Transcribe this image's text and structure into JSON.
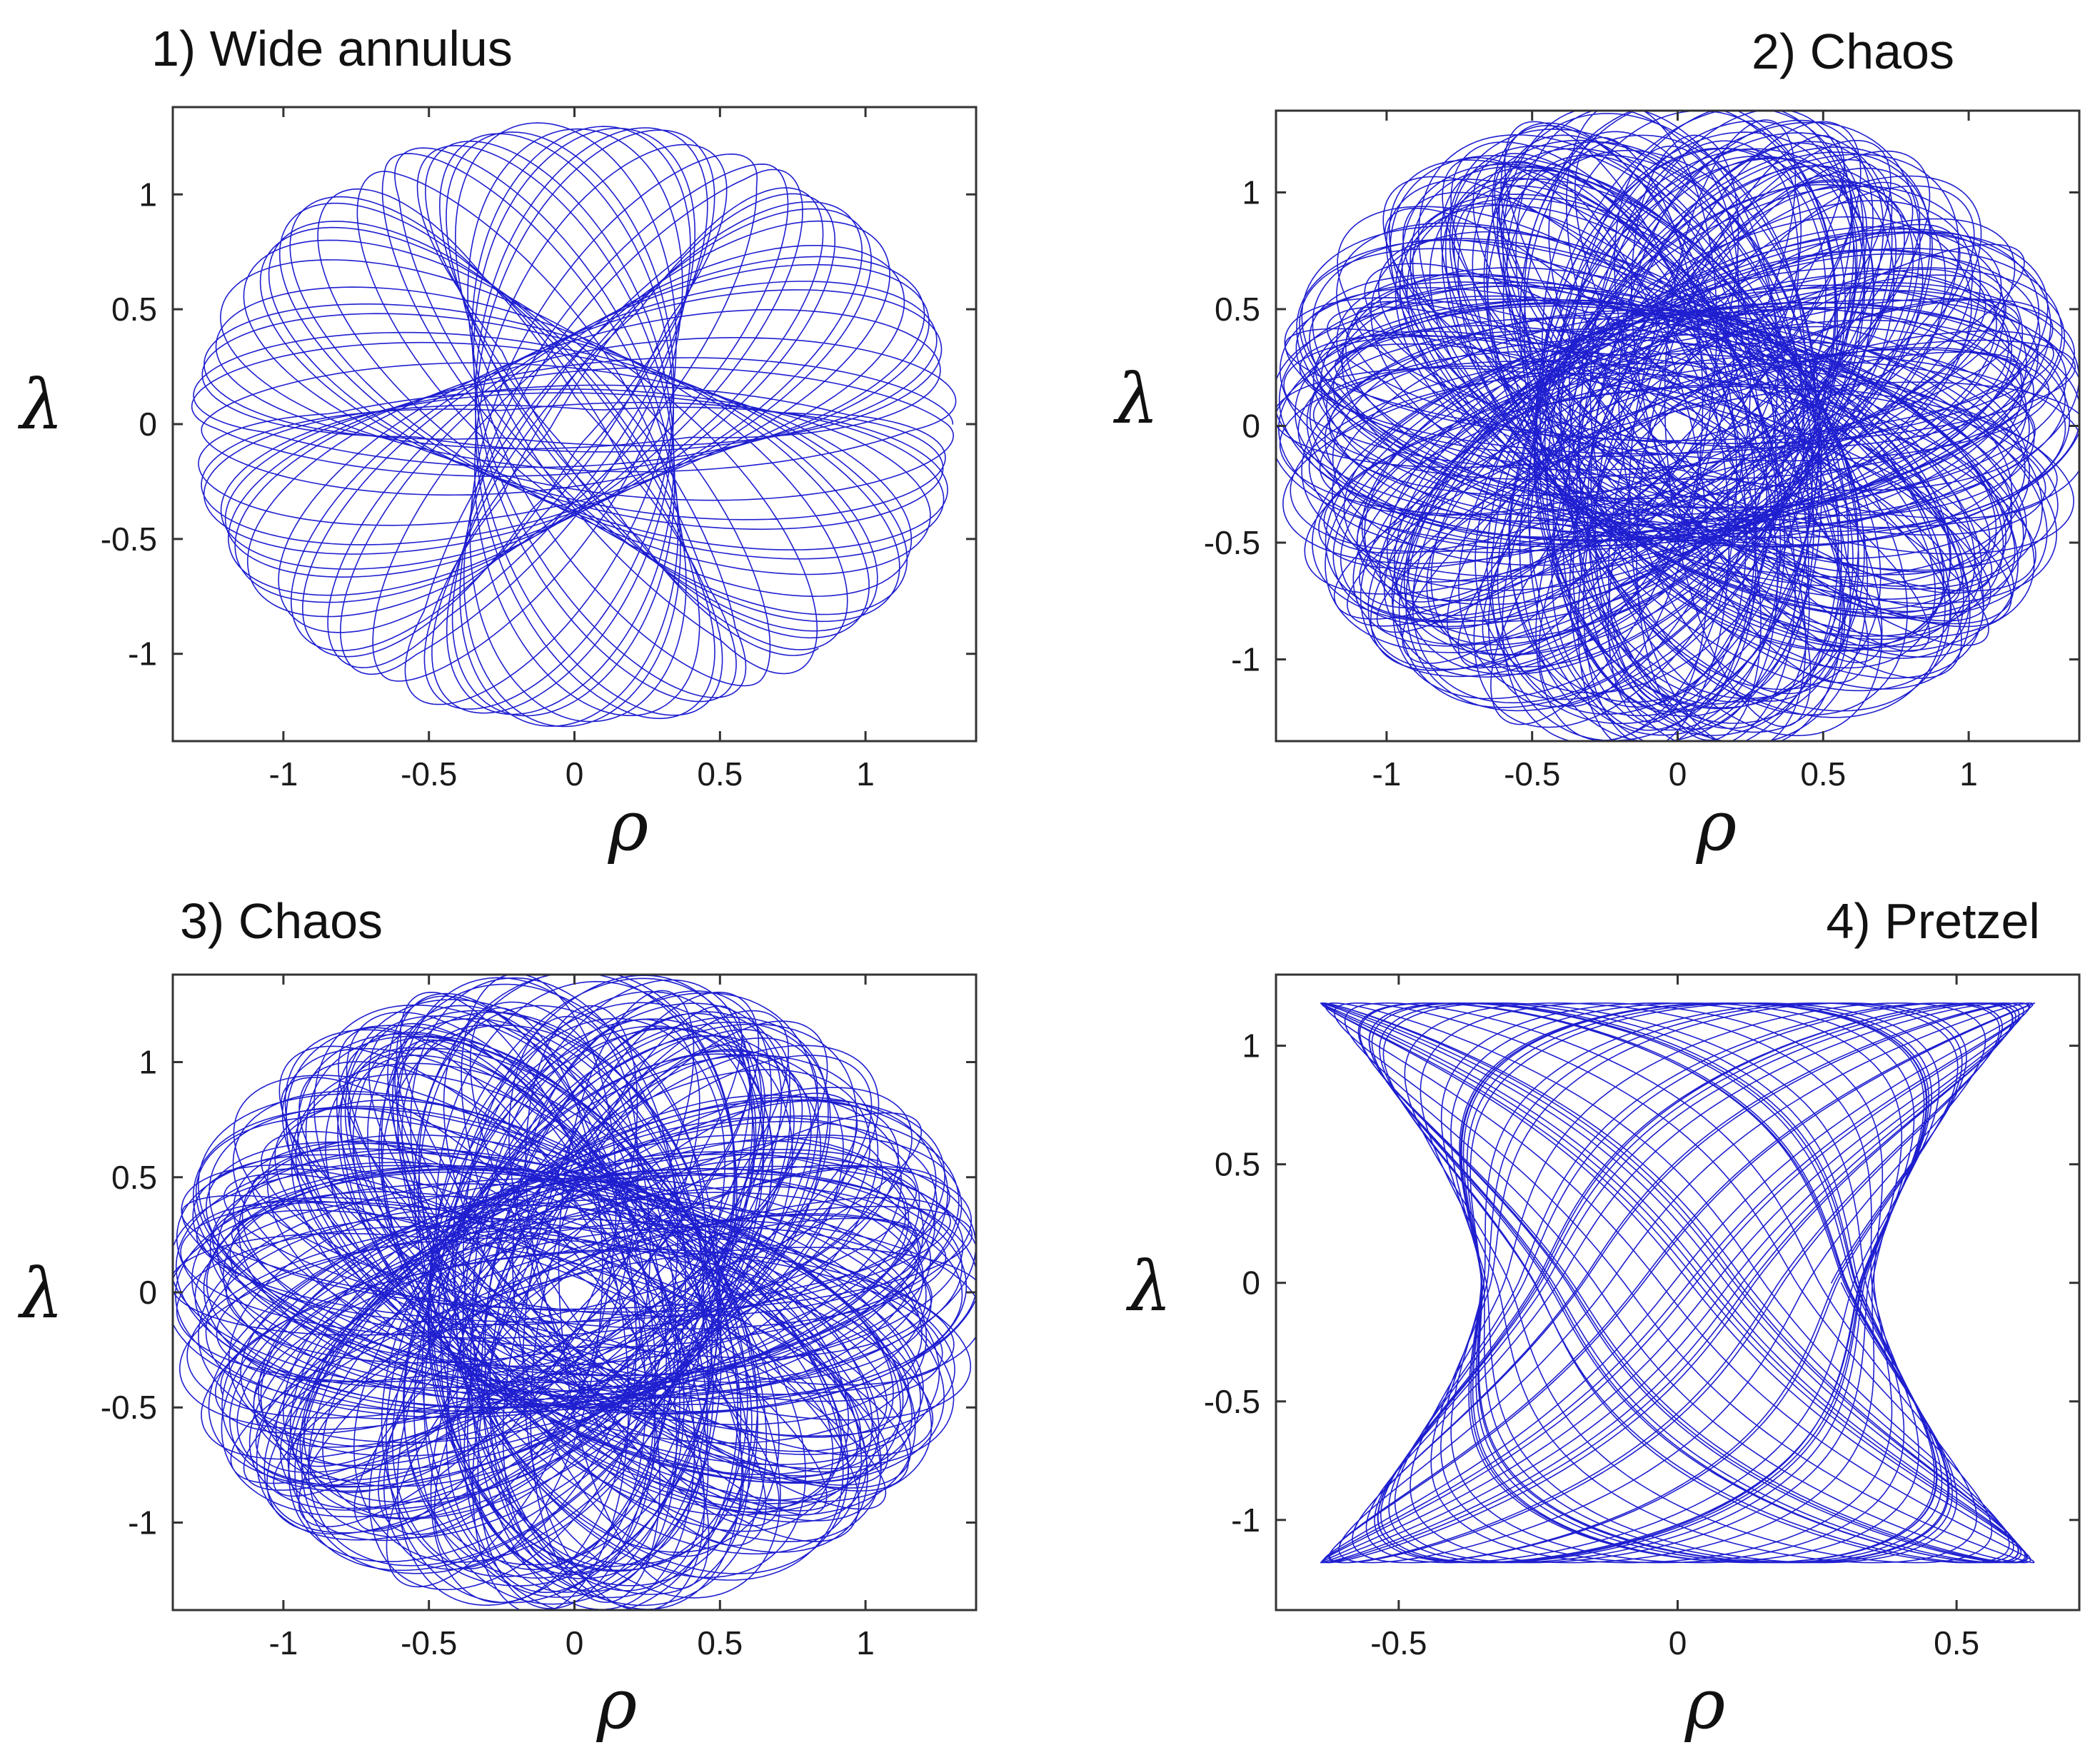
{
  "chart_data": [
    {
      "type": "line",
      "title": "1) Wide annulus",
      "xlabel": "ρ",
      "ylabel": "λ",
      "xlim": [
        -1.38,
        1.38
      ],
      "ylim": [
        -1.38,
        1.38
      ],
      "xticks": [
        -1,
        -0.5,
        0,
        0.5,
        1
      ],
      "xtick_labels": [
        "-1",
        "-0.5",
        "0",
        "0.5",
        "1"
      ],
      "yticks": [
        -1,
        -0.5,
        0,
        0.5,
        1
      ],
      "ytick_labels": [
        "-1",
        "-0.5",
        "0",
        "0.5",
        "1"
      ],
      "grid": false,
      "line_color": "#1f1fd0",
      "trajectory": {
        "pattern": "six-lobed rosette of nested ellipses",
        "A": 1.3,
        "B": 0.06,
        "orientations": 6,
        "turns": 7,
        "r_min": 0.06,
        "r_max": 1.32
      }
    },
    {
      "type": "line",
      "title": "2) Chaos",
      "xlabel": "ρ",
      "ylabel": "λ",
      "xlim": [
        -1.38,
        1.38
      ],
      "ylim": [
        -1.35,
        1.35
      ],
      "xticks": [
        -1,
        -0.5,
        0,
        0.5,
        1
      ],
      "xtick_labels": [
        "-1",
        "-0.5",
        "0",
        "0.5",
        "1"
      ],
      "yticks": [
        -1,
        -0.5,
        0,
        0.5,
        1
      ],
      "ytick_labels": [
        "-1",
        "-0.5",
        "0",
        "0.5",
        "1"
      ],
      "grid": false,
      "line_color": "#1f1fd0",
      "trajectory": {
        "pattern": "chaotic orbit filling a disk",
        "A": 1.3,
        "B": 0.04,
        "orientations": 6,
        "turns": 26,
        "r_min": 0.0,
        "r_max": 1.3
      }
    },
    {
      "type": "line",
      "title": "3) Chaos",
      "xlabel": "ρ",
      "ylabel": "λ",
      "xlim": [
        -1.38,
        1.38
      ],
      "ylim": [
        -1.38,
        1.38
      ],
      "xticks": [
        -1,
        -0.5,
        0,
        0.5,
        1
      ],
      "xtick_labels": [
        "-1",
        "-0.5",
        "0",
        "0.5",
        "1"
      ],
      "yticks": [
        -1,
        -0.5,
        0,
        0.5,
        1
      ],
      "ytick_labels": [
        "-1",
        "-0.5",
        "0",
        "0.5",
        "1"
      ],
      "grid": false,
      "line_color": "#1f1fd0",
      "trajectory": {
        "pattern": "chaotic orbit with drifting lobes",
        "A": 1.3,
        "B": 0.05,
        "orientations": 6,
        "turns": 24,
        "r_min": 0.0,
        "r_max": 1.3
      }
    },
    {
      "type": "line",
      "title": "4) Pretzel",
      "xlabel": "ρ",
      "ylabel": "λ",
      "xlim": [
        -0.72,
        0.72
      ],
      "ylim": [
        -1.38,
        1.3
      ],
      "xticks": [
        -0.5,
        0,
        0.5
      ],
      "xtick_labels": [
        "-0.5",
        "0",
        "0.5"
      ],
      "yticks": [
        -1,
        -0.5,
        0,
        0.5,
        1
      ],
      "ytick_labels": [
        "-1",
        "-0.5",
        "0",
        "0.5",
        "1"
      ],
      "grid": false,
      "line_color": "#1f1fd0",
      "trajectory": {
        "pattern": "bow-tie pretzel filling a box",
        "x_extent": 0.64,
        "y_extent": 1.18
      }
    }
  ]
}
